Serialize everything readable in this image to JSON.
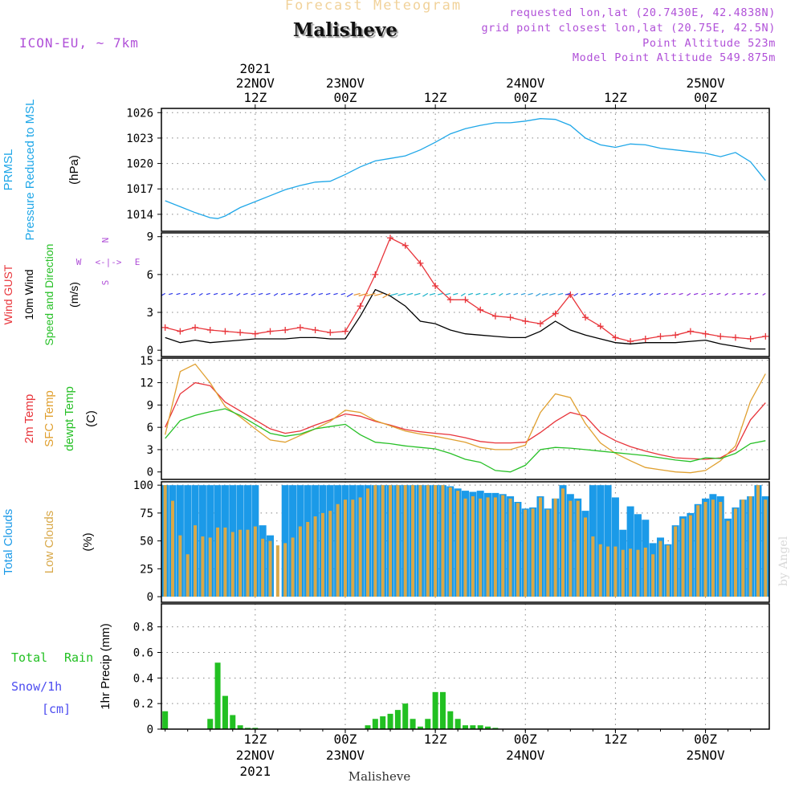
{
  "header": {
    "product_title": "Forecast Meteogram",
    "location": "Malisheve",
    "model": "ICON-EU, ~ 7km",
    "requested": "requested lon,lat (20.7430E, 42.4838N)",
    "grid_point": "grid point closest lon,lat (20.75E, 42.5N)",
    "point_altitude": "Point Altitude 523m",
    "model_altitude": "Model Point Altitude 549.875m"
  },
  "footer": {
    "location": "Malisheve",
    "credit": "by Angel"
  },
  "colors": {
    "pressure": "#1fa7e8",
    "gust": "#e8343a",
    "wind": "#000000",
    "direction": "#27c027",
    "temp": "#e8343a",
    "sfc": "#e0a030",
    "dewpt": "#27c027",
    "total_clouds": "#1b9ae8",
    "low_clouds": "#d8a848",
    "rain": "#22c022",
    "snow": "#4c4cf0",
    "compass": "#b050d8",
    "meta": "#b050d8"
  },
  "time_axis": {
    "top_year": "2021",
    "bottom_year": "2021",
    "labels": [
      {
        "t": 12,
        "date": "22NOV",
        "hour": "12Z"
      },
      {
        "t": 24,
        "date": "23NOV",
        "hour": "00Z"
      },
      {
        "t": 36,
        "date": "",
        "hour": "12Z"
      },
      {
        "t": 48,
        "date": "24NOV",
        "hour": "00Z"
      },
      {
        "t": 60,
        "date": "",
        "hour": "12Z"
      },
      {
        "t": 72,
        "date": "25NOV",
        "hour": "00Z"
      }
    ]
  },
  "compass": {
    "n": "N",
    "s": "S",
    "w": "W",
    "e": "E"
  },
  "chart_data": [
    {
      "type": "line",
      "title": "PRMSL Pressure Reduced to MSL",
      "ylabel": "(hPa)",
      "ylim": [
        1012,
        1026.5
      ],
      "yticks": [
        1014,
        1017,
        1020,
        1023,
        1026
      ],
      "y_labels": [
        {
          "text": "PRMSL",
          "color": "#1fa7e8"
        },
        {
          "text": "Pressure Reduced to MSL",
          "color": "#1fa7e8"
        },
        {
          "text": "(hPa)",
          "color": "#000000"
        }
      ],
      "series": [
        {
          "color": "#1fa7e8",
          "x": [
            0,
            2,
            4,
            6,
            7,
            8,
            10,
            12,
            14,
            16,
            18,
            20,
            22,
            24,
            26,
            28,
            30,
            32,
            34,
            36,
            38,
            40,
            42,
            44,
            46,
            48,
            50,
            52,
            54,
            56,
            58,
            60,
            62,
            64,
            66,
            68,
            70,
            72,
            74,
            76,
            78,
            80
          ],
          "y": [
            1015.6,
            1014.9,
            1014.2,
            1013.6,
            1013.5,
            1013.8,
            1014.8,
            1015.5,
            1016.2,
            1016.9,
            1017.4,
            1017.8,
            1017.9,
            1018.7,
            1019.6,
            1020.3,
            1020.6,
            1020.9,
            1021.6,
            1022.5,
            1023.5,
            1024.1,
            1024.5,
            1024.8,
            1024.8,
            1025.0,
            1025.3,
            1025.2,
            1024.5,
            1023.0,
            1022.2,
            1021.9,
            1022.3,
            1022.2,
            1021.8,
            1021.6,
            1021.4,
            1021.2,
            1020.8,
            1021.3,
            1020.2,
            1018.0
          ]
        }
      ]
    },
    {
      "type": "line",
      "title": "Wind GUST 10m Wind Speed and Direction",
      "ylabel": "(m/s)",
      "ylim": [
        -0.5,
        9.3
      ],
      "yticks": [
        0,
        3,
        6,
        9
      ],
      "y_labels": [
        {
          "text": "Wind GUST",
          "color": "#e8343a"
        },
        {
          "text": "10m Wind",
          "color": "#000000"
        },
        {
          "text": "Speed and Direction",
          "color": "#27c027"
        },
        {
          "text": "(m/s)",
          "color": "#000000"
        }
      ],
      "series": [
        {
          "name": "Wind GUST",
          "color": "#e8343a",
          "markers": true,
          "x": [
            0,
            2,
            4,
            6,
            8,
            10,
            12,
            14,
            16,
            18,
            20,
            22,
            24,
            26,
            28,
            30,
            32,
            34,
            36,
            38,
            40,
            42,
            44,
            46,
            48,
            50,
            52,
            54,
            56,
            58,
            60,
            62,
            64,
            66,
            68,
            70,
            72,
            74,
            76,
            78,
            80
          ],
          "y": [
            1.8,
            1.5,
            1.8,
            1.6,
            1.5,
            1.4,
            1.3,
            1.5,
            1.6,
            1.8,
            1.6,
            1.4,
            1.5,
            3.5,
            6.0,
            8.9,
            8.3,
            6.9,
            5.1,
            4.0,
            4.0,
            3.2,
            2.7,
            2.6,
            2.3,
            2.1,
            2.9,
            4.4,
            2.6,
            1.9,
            1.0,
            0.7,
            0.9,
            1.1,
            1.2,
            1.5,
            1.3,
            1.1,
            1.0,
            0.9,
            1.1
          ]
        },
        {
          "name": "10m Wind",
          "color": "#000000",
          "markers": false,
          "x": [
            0,
            2,
            4,
            6,
            8,
            10,
            12,
            14,
            16,
            18,
            20,
            22,
            24,
            26,
            28,
            30,
            32,
            34,
            36,
            38,
            40,
            42,
            44,
            46,
            48,
            50,
            52,
            54,
            56,
            58,
            60,
            62,
            64,
            66,
            68,
            70,
            72,
            74,
            76,
            78,
            80
          ],
          "y": [
            1.0,
            0.6,
            0.8,
            0.6,
            0.7,
            0.8,
            0.9,
            0.9,
            0.9,
            1.0,
            1.0,
            0.9,
            0.9,
            2.7,
            4.8,
            4.3,
            3.5,
            2.3,
            2.1,
            1.6,
            1.3,
            1.2,
            1.1,
            1.0,
            1.0,
            1.5,
            2.3,
            1.6,
            1.2,
            0.9,
            0.6,
            0.5,
            0.6,
            0.6,
            0.6,
            0.7,
            0.8,
            0.5,
            0.3,
            0.1,
            0.1
          ]
        }
      ]
    },
    {
      "type": "line",
      "title": "2m Temp SFC Temp dewpt Temp",
      "ylabel": "(C)",
      "ylim": [
        -1,
        15.3
      ],
      "yticks": [
        0,
        3,
        6,
        9,
        12,
        15
      ],
      "y_labels": [
        {
          "text": "2m Temp",
          "color": "#e8343a"
        },
        {
          "text": "SFC Temp",
          "color": "#e0a030"
        },
        {
          "text": "dewpt Temp",
          "color": "#27c027"
        },
        {
          "text": "(C)",
          "color": "#000000"
        }
      ],
      "series": [
        {
          "name": "2m Temp",
          "color": "#e8343a",
          "x": [
            0,
            2,
            4,
            6,
            8,
            10,
            12,
            14,
            16,
            18,
            20,
            22,
            24,
            26,
            28,
            30,
            32,
            34,
            36,
            38,
            40,
            42,
            44,
            46,
            48,
            50,
            52,
            54,
            56,
            58,
            60,
            62,
            64,
            66,
            68,
            70,
            72,
            74,
            76,
            78,
            80
          ],
          "y": [
            6.0,
            10.5,
            12.0,
            11.6,
            9.4,
            8.2,
            7.0,
            5.8,
            5.2,
            5.5,
            6.3,
            7.0,
            7.8,
            7.5,
            6.8,
            6.3,
            5.7,
            5.4,
            5.2,
            5.0,
            4.6,
            4.1,
            3.9,
            3.9,
            4.0,
            5.3,
            6.8,
            8.0,
            7.5,
            5.3,
            4.2,
            3.4,
            2.8,
            2.3,
            1.9,
            1.8,
            1.7,
            1.9,
            3.0,
            7.0,
            9.3
          ]
        },
        {
          "name": "SFC Temp",
          "color": "#e0a030",
          "x": [
            0,
            2,
            4,
            6,
            8,
            10,
            12,
            14,
            16,
            18,
            20,
            22,
            24,
            26,
            28,
            30,
            32,
            34,
            36,
            38,
            40,
            42,
            44,
            46,
            48,
            50,
            52,
            54,
            56,
            58,
            60,
            62,
            64,
            66,
            68,
            70,
            72,
            74,
            76,
            78,
            80
          ],
          "y": [
            5.0,
            13.5,
            14.5,
            12.0,
            8.8,
            7.4,
            5.8,
            4.3,
            4.0,
            4.9,
            5.8,
            6.8,
            8.3,
            8.0,
            6.9,
            6.2,
            5.5,
            5.1,
            4.8,
            4.4,
            4.0,
            3.3,
            3.0,
            3.0,
            3.6,
            8.0,
            10.5,
            10.0,
            6.5,
            3.9,
            2.5,
            1.5,
            0.6,
            0.3,
            0.0,
            -0.1,
            0.2,
            1.5,
            3.5,
            9.5,
            13.2
          ]
        },
        {
          "name": "dewpt Temp",
          "color": "#27c027",
          "x": [
            0,
            2,
            4,
            6,
            8,
            10,
            12,
            14,
            16,
            18,
            20,
            22,
            24,
            26,
            28,
            30,
            32,
            34,
            36,
            38,
            40,
            42,
            44,
            46,
            48,
            50,
            52,
            54,
            56,
            58,
            60,
            62,
            64,
            66,
            68,
            70,
            72,
            74,
            76,
            78,
            80
          ],
          "y": [
            4.5,
            6.9,
            7.6,
            8.1,
            8.5,
            7.6,
            6.4,
            5.2,
            4.8,
            5.1,
            5.8,
            6.1,
            6.4,
            5.0,
            4.0,
            3.8,
            3.5,
            3.3,
            3.1,
            2.5,
            1.7,
            1.3,
            0.2,
            0.0,
            0.9,
            3.0,
            3.3,
            3.2,
            3.0,
            2.8,
            2.6,
            2.4,
            2.2,
            1.9,
            1.6,
            1.4,
            1.9,
            1.8,
            2.5,
            3.8,
            4.2
          ]
        }
      ]
    },
    {
      "type": "bar",
      "title": "Total Clouds Low Clouds",
      "ylabel": "(%)",
      "ylim": [
        -5,
        103
      ],
      "yticks": [
        0,
        25,
        50,
        75,
        100
      ],
      "y_labels": [
        {
          "text": "Total Clouds",
          "color": "#1b9ae8"
        },
        {
          "text": "Low Clouds",
          "color": "#d8a848"
        },
        {
          "text": "(%)",
          "color": "#000000"
        }
      ],
      "x": [
        0,
        1,
        2,
        3,
        4,
        5,
        6,
        7,
        8,
        9,
        10,
        11,
        12,
        13,
        14,
        15,
        16,
        17,
        18,
        19,
        20,
        21,
        22,
        23,
        24,
        25,
        26,
        27,
        28,
        29,
        30,
        31,
        32,
        33,
        34,
        35,
        36,
        37,
        38,
        39,
        40,
        41,
        42,
        43,
        44,
        45,
        46,
        47,
        48,
        49,
        50,
        51,
        52,
        53,
        54,
        55,
        56,
        57,
        58,
        59,
        60,
        61,
        62,
        63,
        64,
        65,
        66,
        67,
        68,
        69,
        70,
        71,
        72,
        73,
        74,
        75,
        76,
        77,
        78,
        79,
        80
      ],
      "series": [
        {
          "name": "Total Clouds",
          "color": "#1b9ae8",
          "values": [
            100,
            100,
            100,
            100,
            100,
            100,
            100,
            100,
            100,
            100,
            100,
            100,
            100,
            64,
            55,
            0,
            100,
            100,
            100,
            100,
            100,
            100,
            100,
            100,
            100,
            100,
            100,
            100,
            100,
            100,
            100,
            100,
            100,
            100,
            100,
            100,
            100,
            100,
            99,
            97,
            95,
            94,
            95,
            93,
            93,
            92,
            90,
            85,
            79,
            80,
            90,
            79,
            88,
            100,
            92,
            88,
            77,
            100,
            100,
            100,
            89,
            60,
            81,
            74,
            69,
            48,
            53,
            47,
            64,
            72,
            75,
            83,
            88,
            92,
            90,
            70,
            80,
            87,
            90,
            100,
            90
          ]
        },
        {
          "name": "Low Clouds",
          "color": "#d8a848",
          "values": [
            100,
            86,
            55,
            38,
            64,
            54,
            53,
            62,
            62,
            58,
            60,
            60,
            63,
            52,
            50,
            46,
            48,
            53,
            63,
            67,
            72,
            75,
            77,
            83,
            87,
            87,
            89,
            97,
            100,
            100,
            100,
            100,
            100,
            100,
            100,
            100,
            100,
            100,
            98,
            95,
            88,
            90,
            88,
            89,
            89,
            91,
            88,
            84,
            78,
            79,
            89,
            78,
            88,
            97,
            86,
            86,
            71,
            54,
            47,
            45,
            45,
            42,
            43,
            42,
            44,
            38,
            50,
            46,
            63,
            70,
            73,
            82,
            85,
            87,
            85,
            68,
            79,
            87,
            90,
            100,
            87
          ]
        }
      ]
    },
    {
      "type": "bar",
      "title": "Total Rain Snow/1h [cm] 1hr Precip (mm)",
      "ylabel": "1hr Precip (mm)",
      "ylim": [
        0,
        0.98
      ],
      "yticks": [
        0,
        0.2,
        0.4,
        0.6,
        0.8
      ],
      "ytick_labels": [
        "0",
        "0.2",
        "0.4",
        "0.6",
        "0.8"
      ],
      "y_labels": [
        {
          "text": "Total",
          "color": "#22c022"
        },
        {
          "text": "Rain",
          "color": "#22c022"
        },
        {
          "text": "Snow/1h",
          "color": "#4c4cf0"
        },
        {
          "text": "[cm]",
          "color": "#4c4cf0"
        },
        {
          "text": "1hr Precip (mm)",
          "color": "#000000"
        }
      ],
      "series": [
        {
          "name": "Total Rain",
          "color": "#22c022",
          "x": [
            0,
            6,
            7,
            8,
            9,
            10,
            11,
            12,
            27,
            28,
            29,
            30,
            31,
            32,
            33,
            34,
            35,
            36,
            37,
            38,
            39,
            40,
            41,
            42,
            43,
            44
          ],
          "values": [
            0.14,
            0.08,
            0.52,
            0.26,
            0.11,
            0.03,
            0.01,
            0.01,
            0.03,
            0.08,
            0.1,
            0.12,
            0.15,
            0.2,
            0.08,
            0.02,
            0.08,
            0.29,
            0.29,
            0.14,
            0.08,
            0.03,
            0.03,
            0.03,
            0.02,
            0.01
          ]
        }
      ]
    }
  ]
}
